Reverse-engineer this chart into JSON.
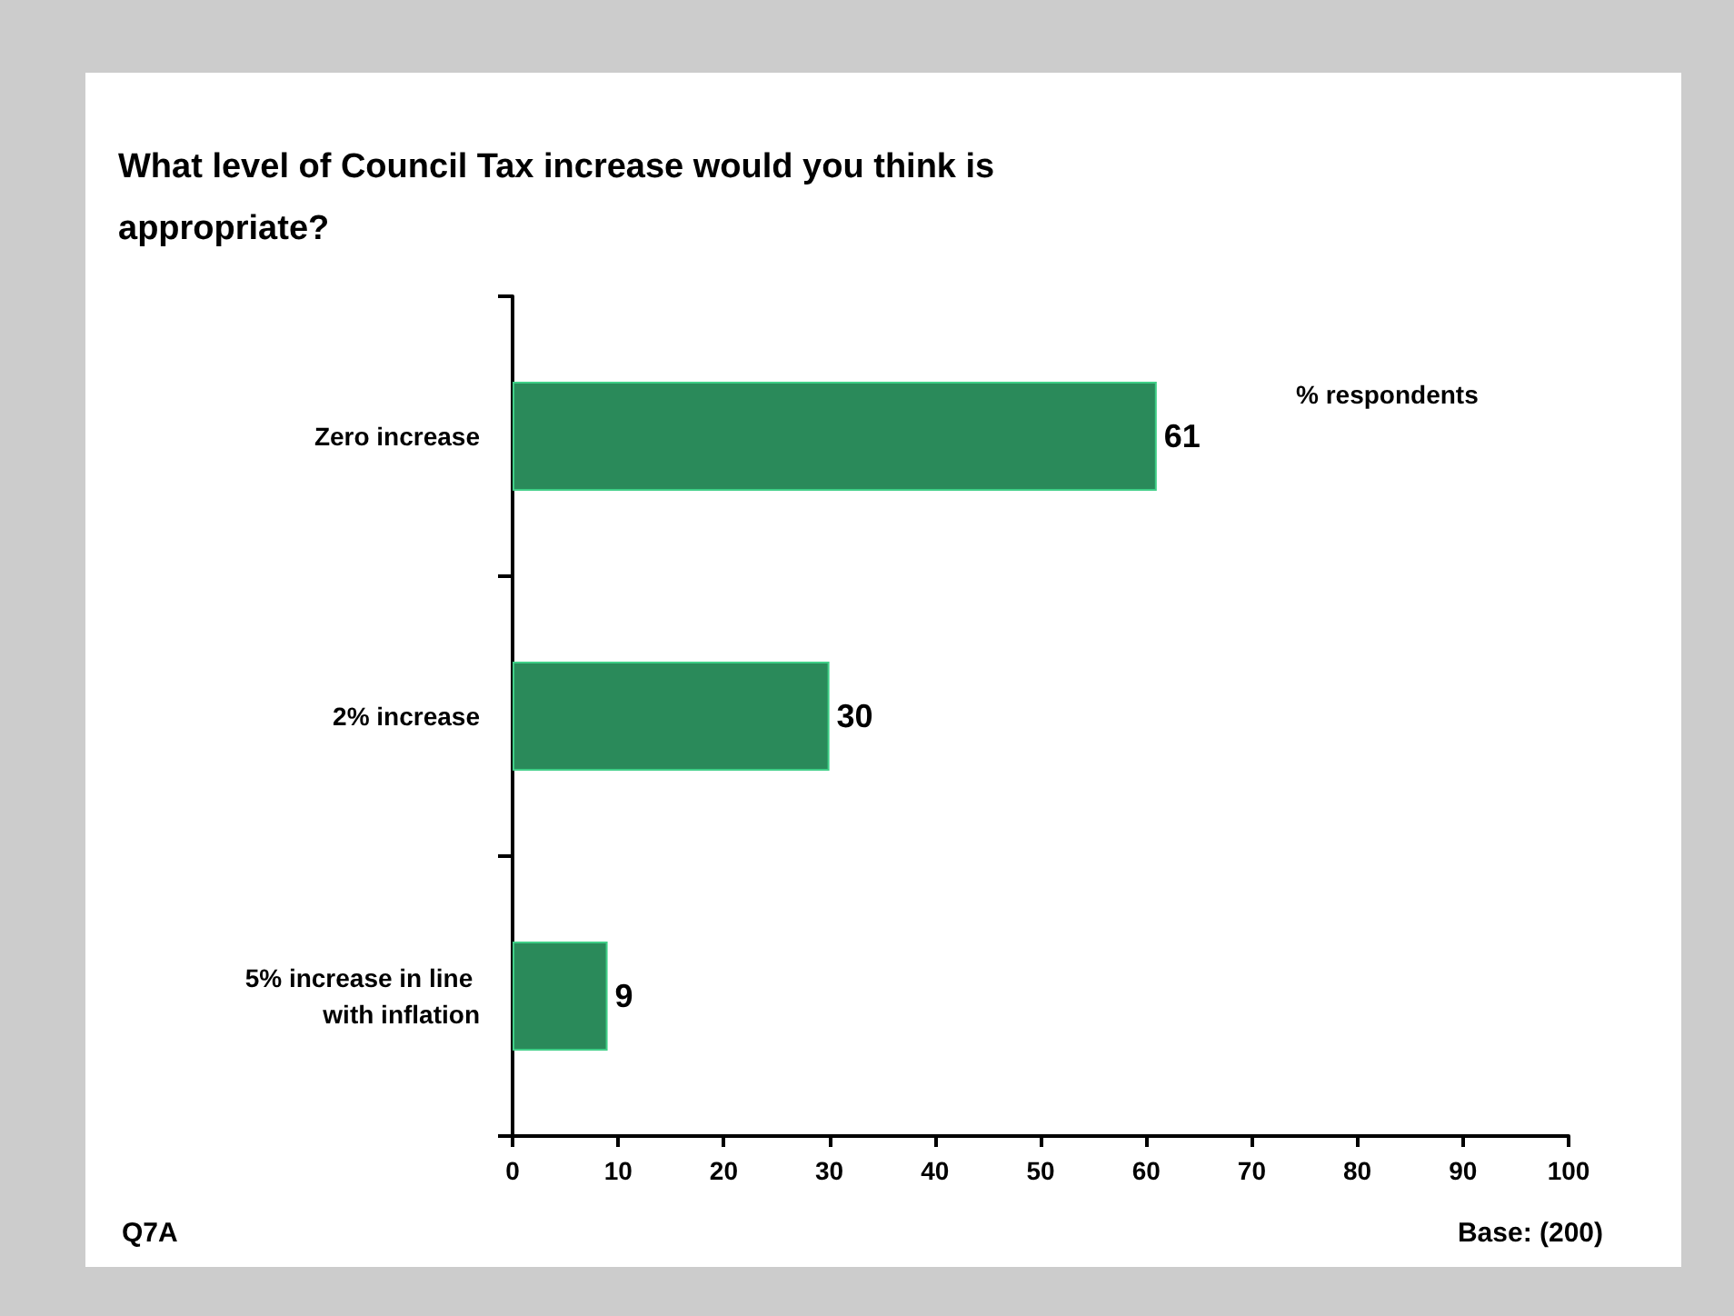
{
  "chart_data": {
    "type": "bar",
    "orientation": "horizontal",
    "title": "What level of Council Tax increase would you think is appropriate?",
    "categories": [
      "Zero increase",
      "2% increase",
      "5% increase in line with inflation"
    ],
    "values": [
      61,
      30,
      9
    ],
    "color": "#2a8a5a",
    "xlim": [
      0,
      100
    ],
    "xticks": [
      0,
      10,
      20,
      30,
      40,
      50,
      60,
      70,
      80,
      90,
      100
    ],
    "data_labels": true,
    "grid": false,
    "annotations": [
      "% respondents",
      "Q7A",
      "Base: (200)"
    ]
  }
}
